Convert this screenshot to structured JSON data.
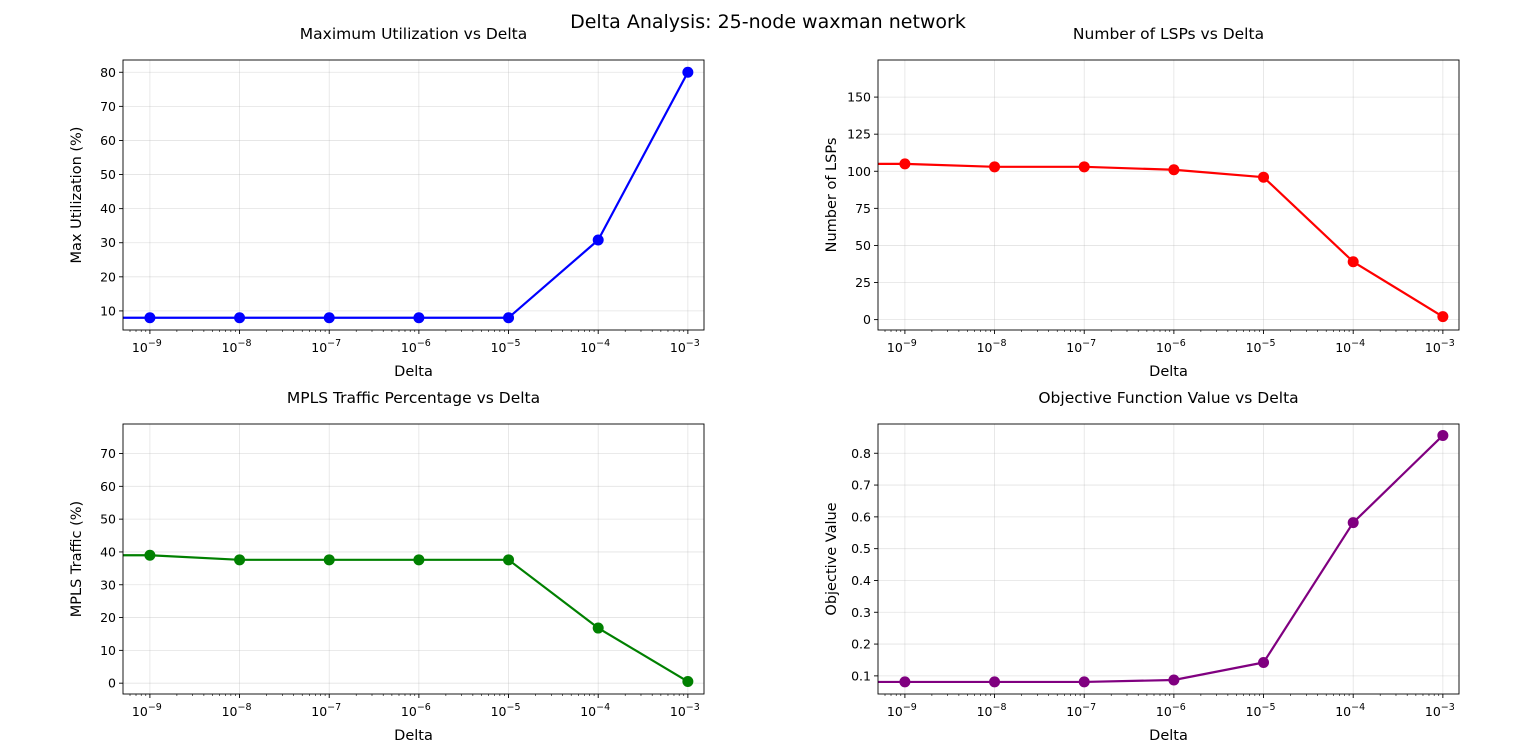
{
  "figure": {
    "suptitle": "Delta Analysis: 25-node waxman network"
  },
  "chart_data": [
    {
      "type": "line",
      "title": "Maximum Utilization vs Delta",
      "xlabel": "Delta",
      "ylabel": "Max Utilization (%)",
      "xscale": "log",
      "x": [
        1e-09,
        1e-08,
        1e-07,
        1e-06,
        1e-05,
        0.0001,
        0.001
      ],
      "x_tick_labels": [
        "10−9",
        "10−8",
        "10−7",
        "10−6",
        "10−5",
        "10−4",
        "10−3"
      ],
      "y_ticks": [
        10,
        20,
        30,
        40,
        50,
        60,
        70,
        80
      ],
      "ylim": [
        4.4,
        83.6
      ],
      "series": [
        {
          "values": [
            8.0,
            8.0,
            8.0,
            8.0,
            8.0,
            30.8,
            80.0
          ],
          "color": "#0000ff"
        }
      ],
      "grid": true
    },
    {
      "type": "line",
      "title": "Number of LSPs vs Delta",
      "xlabel": "Delta",
      "ylabel": "Number of LSPs",
      "xscale": "log",
      "x": [
        1e-09,
        1e-08,
        1e-07,
        1e-06,
        1e-05,
        0.0001,
        0.001
      ],
      "x_tick_labels": [
        "10−9",
        "10−8",
        "10−7",
        "10−6",
        "10−5",
        "10−4",
        "10−3"
      ],
      "y_ticks": [
        0,
        25,
        50,
        75,
        100,
        125,
        150
      ],
      "ylim": [
        -7,
        175
      ],
      "series": [
        {
          "values": [
            105,
            103,
            103,
            101,
            96,
            39,
            2
          ],
          "color": "#ff0000"
        }
      ],
      "grid": true
    },
    {
      "type": "line",
      "title": "MPLS Traffic Percentage vs Delta",
      "xlabel": "Delta",
      "ylabel": "MPLS Traffic (%)",
      "xscale": "log",
      "x": [
        1e-09,
        1e-08,
        1e-07,
        1e-06,
        1e-05,
        0.0001,
        0.001
      ],
      "x_tick_labels": [
        "10−9",
        "10−8",
        "10−7",
        "10−6",
        "10−5",
        "10−4",
        "10−3"
      ],
      "y_ticks": [
        0,
        10,
        20,
        30,
        40,
        50,
        60,
        70
      ],
      "ylim": [
        -3.3,
        79
      ],
      "series": [
        {
          "values": [
            39.0,
            37.6,
            37.6,
            37.6,
            37.6,
            16.8,
            0.5
          ],
          "color": "#008000"
        }
      ],
      "grid": true
    },
    {
      "type": "line",
      "title": "Objective Function Value vs Delta",
      "xlabel": "Delta",
      "ylabel": "Objective Value",
      "xscale": "log",
      "x": [
        1e-09,
        1e-08,
        1e-07,
        1e-06,
        1e-05,
        0.0001,
        0.001
      ],
      "x_tick_labels": [
        "10−9",
        "10−8",
        "10−7",
        "10−6",
        "10−5",
        "10−4",
        "10−3"
      ],
      "y_ticks": [
        0.1,
        0.2,
        0.3,
        0.4,
        0.5,
        0.6,
        0.7,
        0.8
      ],
      "ylim": [
        0.043,
        0.892
      ],
      "series": [
        {
          "values": [
            0.081,
            0.081,
            0.081,
            0.087,
            0.142,
            0.582,
            0.856
          ],
          "color": "#800080"
        }
      ],
      "grid": true
    }
  ]
}
